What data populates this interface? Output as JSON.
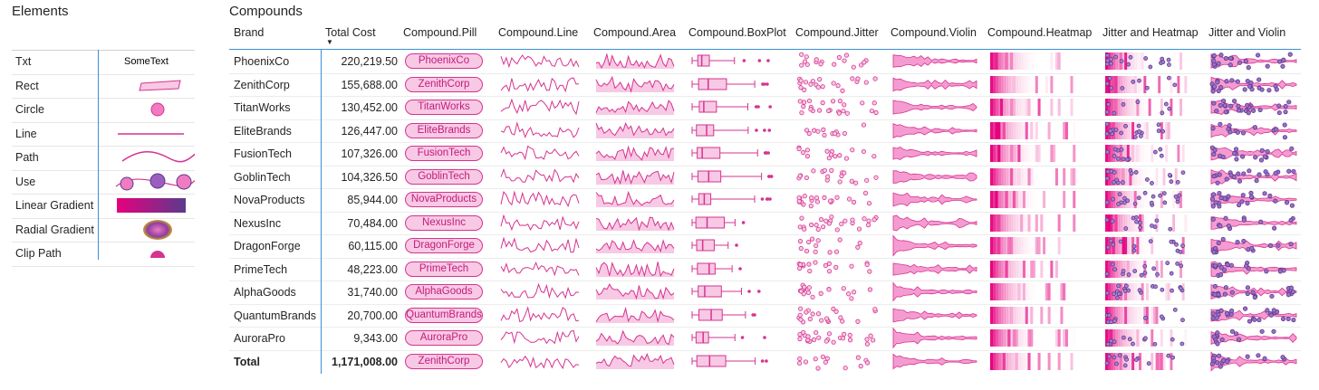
{
  "elements_panel": {
    "title": "Elements",
    "items": [
      {
        "label": "Txt",
        "visual": "text",
        "sample": "SomeText"
      },
      {
        "label": "Rect",
        "visual": "rect"
      },
      {
        "label": "Circle",
        "visual": "circle"
      },
      {
        "label": "Line",
        "visual": "line"
      },
      {
        "label": "Path",
        "visual": "path"
      },
      {
        "label": "Use",
        "visual": "use"
      },
      {
        "label": "Linear Gradient",
        "visual": "linear-gradient"
      },
      {
        "label": "Radial Gradient",
        "visual": "radial-gradient"
      },
      {
        "label": "Clip Path",
        "visual": "clip-path"
      }
    ]
  },
  "compounds_panel": {
    "title": "Compounds",
    "sort_indicator": "▼",
    "headers": [
      "Brand",
      "Total Cost",
      "Compound.Pill",
      "Compound.Line",
      "Compound.Area",
      "Compound.BoxPlot",
      "Compound.Jitter",
      "Compound.Violin",
      "Compound.Heatmap",
      "Jitter and Heatmap",
      "Jitter and Violin"
    ],
    "rows": [
      {
        "brand": "PhoenixCo",
        "cost": "220,219.50",
        "pill": "PhoenixCo"
      },
      {
        "brand": "ZenithCorp",
        "cost": "155,688.00",
        "pill": "ZenithCorp"
      },
      {
        "brand": "TitanWorks",
        "cost": "130,452.00",
        "pill": "TitanWorks"
      },
      {
        "brand": "EliteBrands",
        "cost": "126,447.00",
        "pill": "EliteBrands"
      },
      {
        "brand": "FusionTech",
        "cost": "107,326.00",
        "pill": "FusionTech"
      },
      {
        "brand": "GoblinTech",
        "cost": "104,326.50",
        "pill": "GoblinTech"
      },
      {
        "brand": "NovaProducts",
        "cost": "85,944.00",
        "pill": "NovaProducts"
      },
      {
        "brand": "NexusInc",
        "cost": "70,484.00",
        "pill": "NexusInc"
      },
      {
        "brand": "DragonForge",
        "cost": "60,115.00",
        "pill": "DragonForge"
      },
      {
        "brand": "PrimeTech",
        "cost": "48,223.00",
        "pill": "PrimeTech"
      },
      {
        "brand": "AlphaGoods",
        "cost": "31,740.00",
        "pill": "AlphaGoods"
      },
      {
        "brand": "QuantumBrands",
        "cost": "20,700.00",
        "pill": "QuantumBrands"
      },
      {
        "brand": "AuroraPro",
        "cost": "9,343.00",
        "pill": "AuroraPro"
      }
    ],
    "total": {
      "brand": "Total",
      "cost": "1,171,008.00",
      "pill": "ZenithCorp"
    }
  },
  "colors": {
    "accent": "#d6338f",
    "accent_light": "#f7c9e4",
    "purple": "#5b3a8c",
    "divider": "#3b8fd8"
  }
}
